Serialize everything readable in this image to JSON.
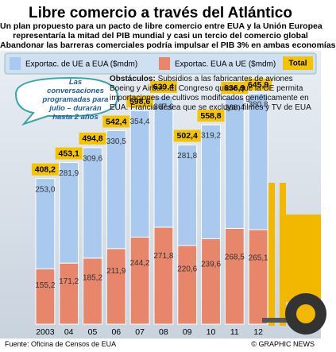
{
  "chart_data": {
    "type": "stacked_bar",
    "title": "Libre comercio a través del Atlántico",
    "subtitle": [
      "Un plan propuesto  para un pacto de libre comercio entre EUA y la Unión Europea",
      "representaría la mitad del PIB mundial y casi un tercio del comercio global",
      "Abandonar las barreras comerciales podría impulsar el PIB 3% en ambas economías"
    ],
    "categories": [
      "2003",
      "04",
      "05",
      "06",
      "07",
      "08",
      "09",
      "10",
      "11",
      "12"
    ],
    "series": [
      {
        "name": "Exportac. EUA a UE ($mdm)",
        "color": "#e8866c",
        "values": [
          155.2,
          171.2,
          185.2,
          211.9,
          244.2,
          271.8,
          220.6,
          239.6,
          268.5,
          265.1
        ],
        "value_labels": [
          "155,2",
          "171,2",
          "185,2",
          "211,9",
          "244,2",
          "271,8",
          "220,6",
          "239,6",
          "268,5",
          "265,1"
        ]
      },
      {
        "name": "Exportac. de UE a EUA ($mdm)",
        "color": "#a9caee",
        "values": [
          253.0,
          281.9,
          309.6,
          330.5,
          354.4,
          367.6,
          281.8,
          319.2,
          368.4,
          380.8
        ],
        "value_labels": [
          "253,0",
          "281,9",
          "309,6",
          "330,5",
          "354,4",
          "367,6",
          "281,8",
          "319,2",
          "368,4",
          "380,8"
        ]
      }
    ],
    "totals": {
      "name": "Total",
      "color": "#f5c400",
      "values": [
        408.2,
        453.1,
        494.8,
        542.4,
        598.6,
        639.4,
        502.4,
        558.8,
        636.9,
        645.9
      ],
      "value_labels": [
        "408,2",
        "453,1",
        "494,8",
        "542,4",
        "598,6",
        "639,4",
        "502,4",
        "558,8",
        "636,9",
        "645,9"
      ]
    },
    "callout": "Las conversaciones programadas para julio – durarán hasta 2 años",
    "annotation": {
      "label": "Obstáculos:",
      "text": "Subsidios a las fabricantes de aviones Boeing y Airbus. El Congreso quiere que la UE permita importaciones de cultivos modificados genéticamente en EUA. Francia desea que se excluyan filmes y TV de EUA"
    },
    "source": "Fuente: Oficina de Censos de EUA",
    "credit": "© GRAPHIC NEWS"
  }
}
